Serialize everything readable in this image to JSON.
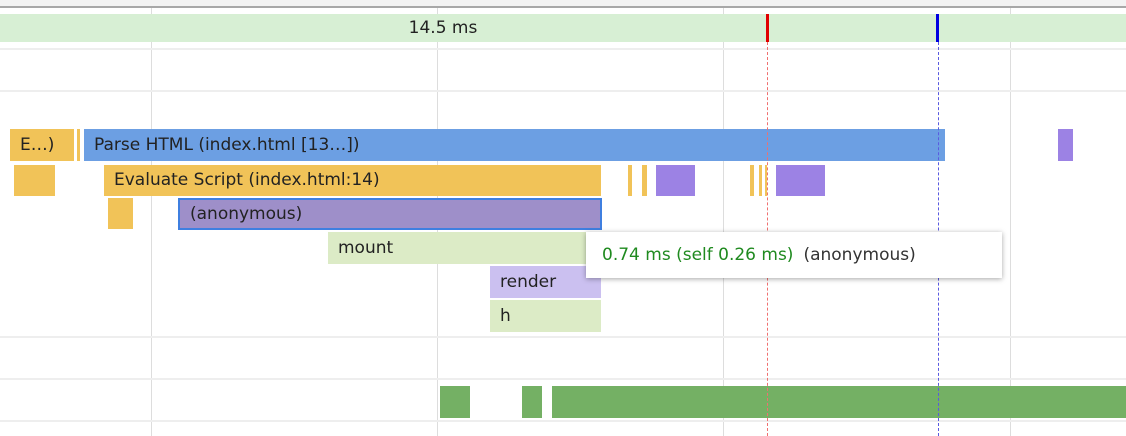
{
  "frame": {
    "duration_label": "14.5 ms"
  },
  "flame": {
    "event_truncated": "E…)",
    "parse_html": "Parse HTML (index.html [13…])",
    "evaluate_script": "Evaluate Script (index.html:14)",
    "anonymous": "(anonymous)",
    "mount": "mount",
    "render": "render",
    "h": "h"
  },
  "tooltip": {
    "time": "0.74 ms (self 0.26 ms)",
    "name": "(anonymous)"
  },
  "colors": {
    "scripting": "#f1c358",
    "parse": "#6c9fe3",
    "function": "#9c82e4",
    "selected_border": "#3f7fe0",
    "frame": "#d7efd4",
    "paint": "#74b064",
    "marker_red": "#e00000",
    "marker_blue": "#0000e0"
  }
}
